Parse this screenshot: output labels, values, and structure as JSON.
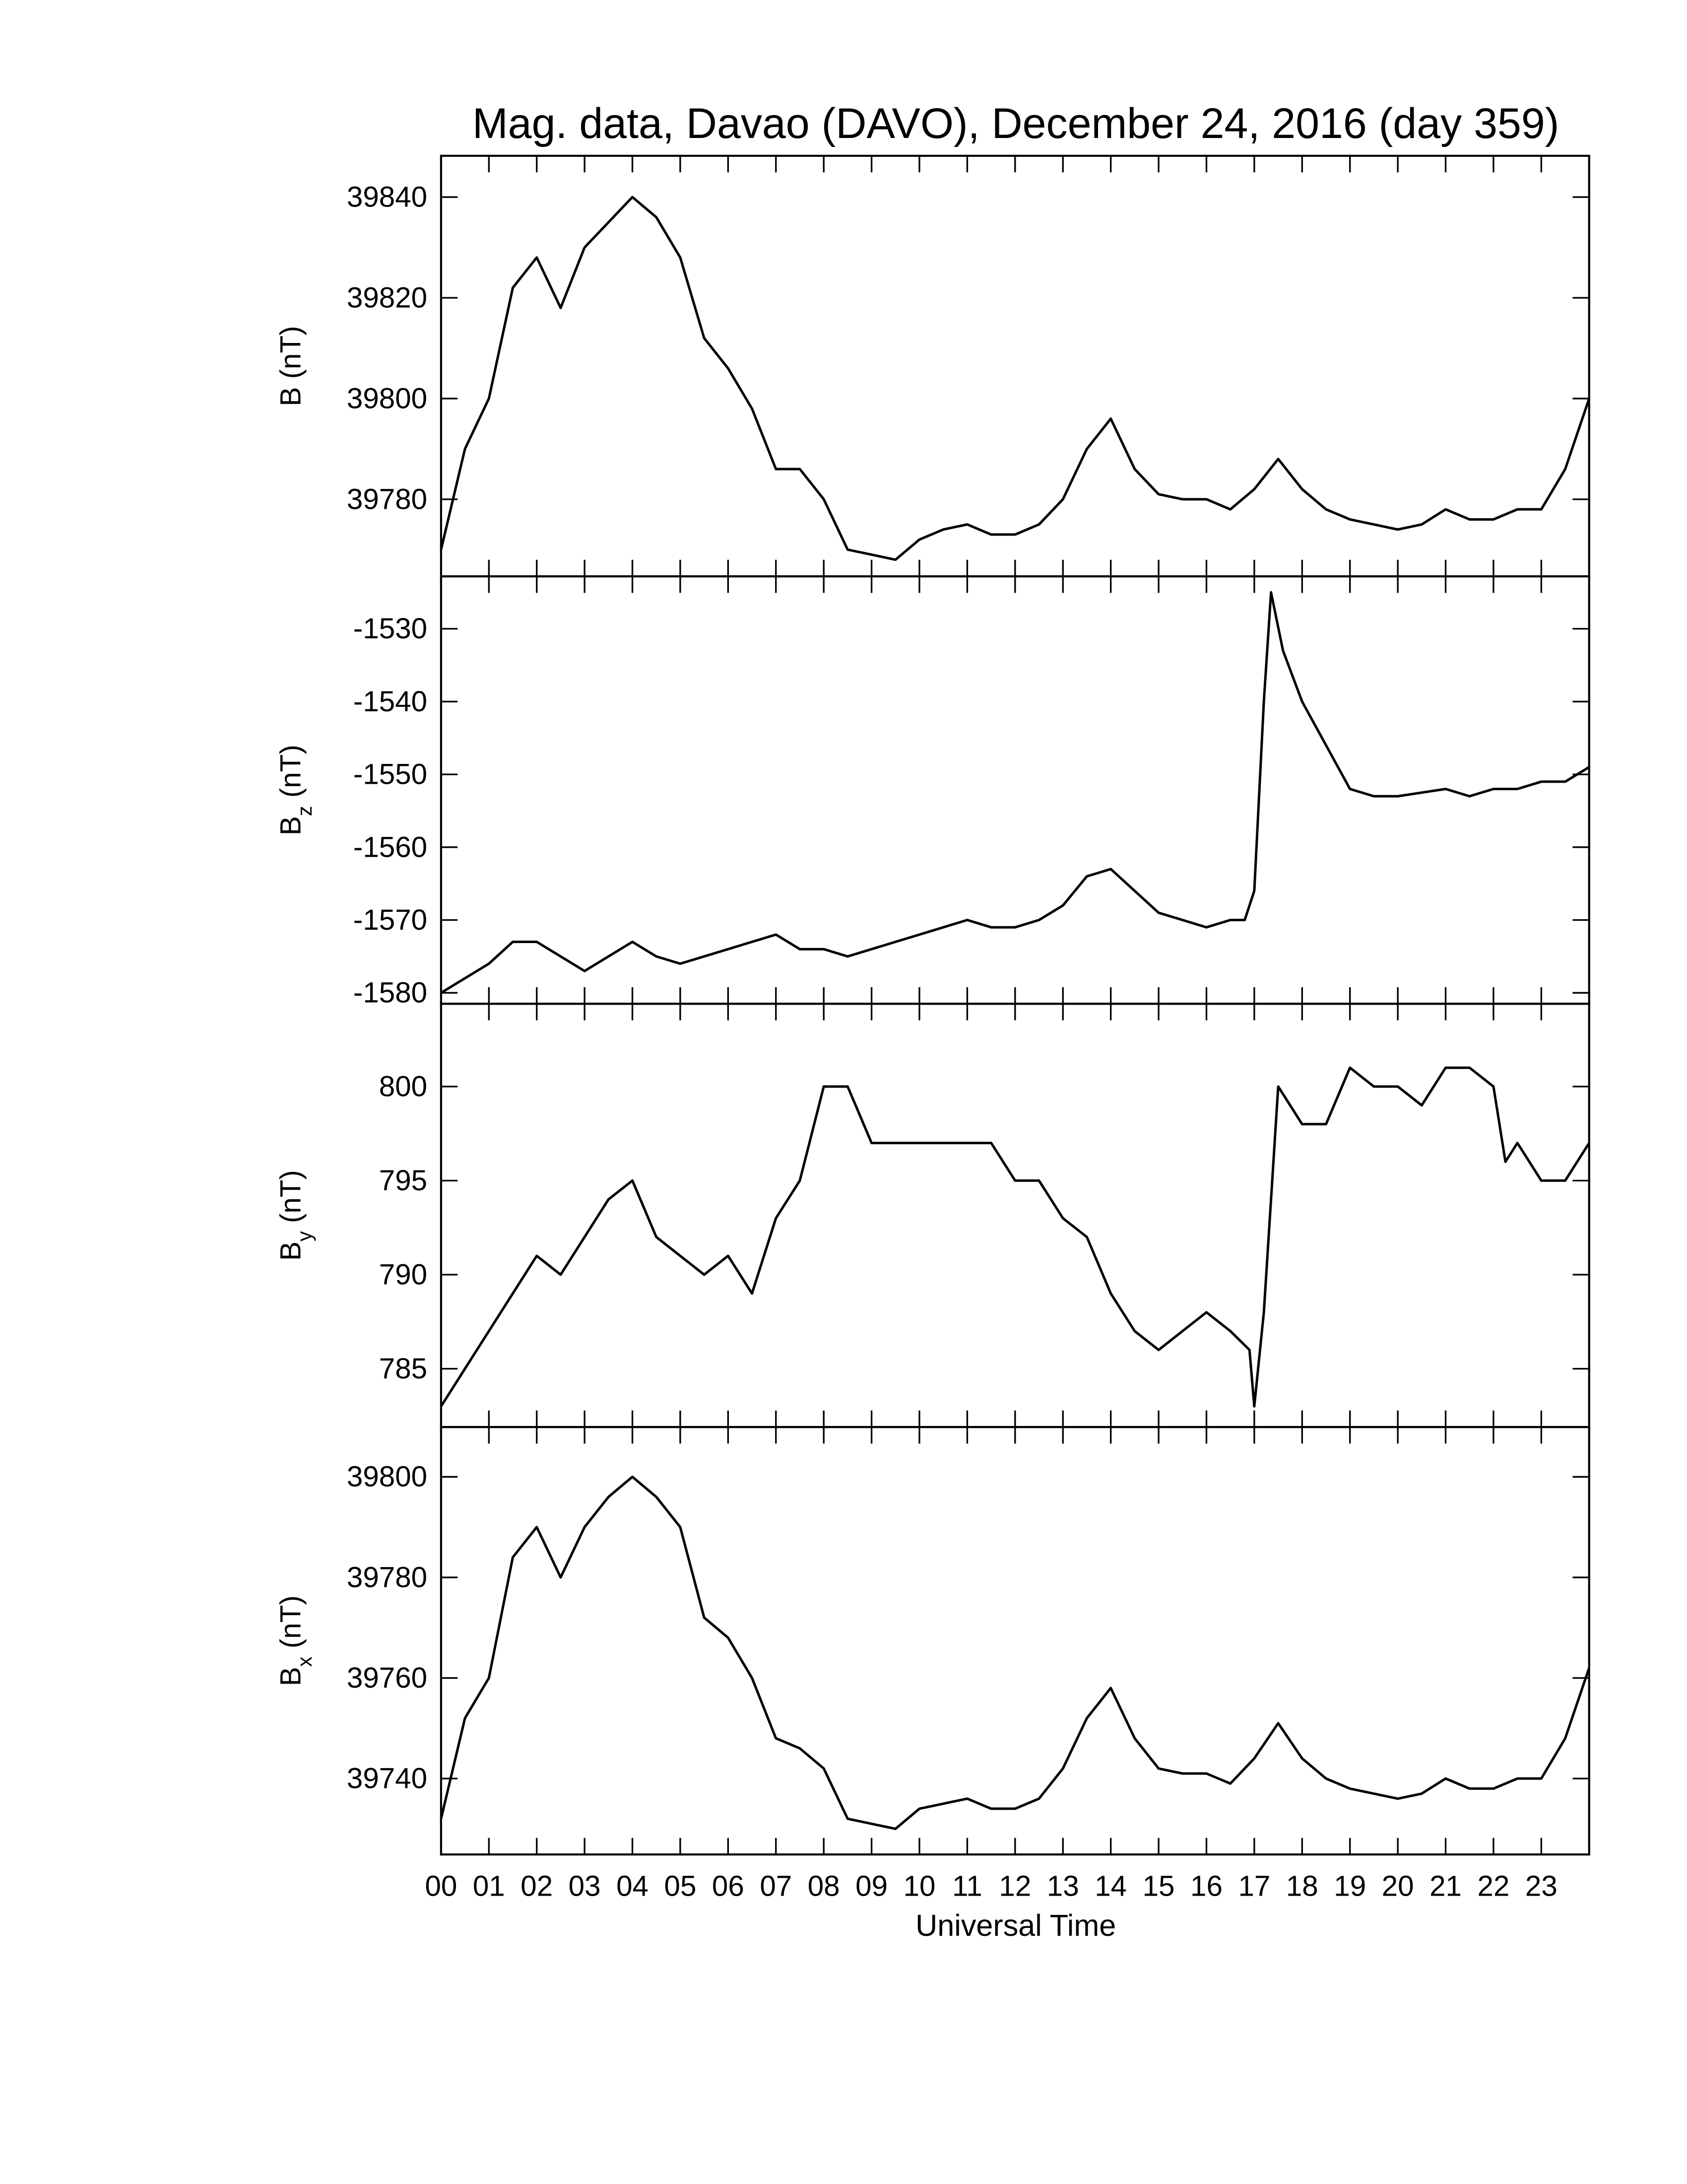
{
  "chart_data": [
    {
      "type": "line",
      "title": "Mag. data, Davao (DAVO), December 24, 2016 (day 359)",
      "ylabel": {
        "base": "B",
        "unit": "(nT)"
      },
      "color": "#000000",
      "xlim": [
        0,
        24
      ],
      "ylim": [
        39764.7,
        39848.2
      ],
      "yticks": [
        39780,
        39800,
        39820,
        39840
      ],
      "x": [
        0,
        0.5,
        1,
        1.5,
        2,
        2.5,
        3,
        3.5,
        4,
        4.5,
        5,
        5.5,
        6,
        6.5,
        7,
        7.5,
        8,
        8.5,
        9,
        9.5,
        10,
        10.5,
        11,
        11.5,
        12,
        12.5,
        13,
        13.5,
        14,
        14.5,
        15,
        15.5,
        16,
        16.5,
        17,
        17.5,
        18,
        18.5,
        19,
        19.5,
        20,
        20.5,
        21,
        21.5,
        22,
        22.5,
        23,
        23.5,
        24
      ],
      "values": [
        39770,
        39790,
        39800,
        39822,
        39828,
        39818,
        39830,
        39835,
        39840,
        39836,
        39828,
        39812,
        39806,
        39798,
        39786,
        39786,
        39780,
        39770,
        39769,
        39768,
        39772,
        39774,
        39775,
        39773,
        39773,
        39775,
        39780,
        39790,
        39796,
        39786,
        39781,
        39780,
        39780,
        39778,
        39782,
        39788,
        39782,
        39778,
        39776,
        39775,
        39774,
        39775,
        39778,
        39776,
        39776,
        39778,
        39778,
        39786,
        39800
      ]
    },
    {
      "type": "line",
      "ylabel": {
        "base": "B",
        "sub": "z",
        "unit": "(nT)"
      },
      "color": "#000000",
      "xlim": [
        0,
        24
      ],
      "ylim": [
        -1581.5,
        -1522.8
      ],
      "yticks": [
        -1580,
        -1570,
        -1560,
        -1550,
        -1540,
        -1530
      ],
      "x": [
        0,
        0.5,
        1,
        1.5,
        2,
        2.5,
        3,
        3.5,
        4,
        4.5,
        5,
        5.5,
        6,
        6.5,
        7,
        7.5,
        8,
        8.5,
        9,
        9.5,
        10,
        10.5,
        11,
        11.5,
        12,
        12.5,
        13,
        13.5,
        14,
        14.5,
        15,
        15.5,
        16,
        16.5,
        16.8,
        17,
        17.2,
        17.35,
        17.6,
        18,
        18.5,
        19,
        19.5,
        20,
        20.5,
        21,
        21.5,
        22,
        22.5,
        23,
        23.5,
        24
      ],
      "values": [
        -1580,
        -1578,
        -1576,
        -1573,
        -1573,
        -1575,
        -1577,
        -1575,
        -1573,
        -1575,
        -1576,
        -1575,
        -1574,
        -1573,
        -1572,
        -1574,
        -1574,
        -1575,
        -1574,
        -1573,
        -1572,
        -1571,
        -1570,
        -1571,
        -1571,
        -1570,
        -1568,
        -1564,
        -1563,
        -1566,
        -1569,
        -1570,
        -1571,
        -1570,
        -1570,
        -1566,
        -1540,
        -1525,
        -1533,
        -1540,
        -1546,
        -1552,
        -1553,
        -1553,
        -1552.5,
        -1552,
        -1553,
        -1552,
        -1552,
        -1551,
        -1551,
        -1549
      ]
    },
    {
      "type": "line",
      "ylabel": {
        "base": "B",
        "sub": "y",
        "unit": "(nT)"
      },
      "color": "#000000",
      "xlim": [
        0,
        24
      ],
      "ylim": [
        781.9,
        804.4
      ],
      "yticks": [
        785,
        790,
        795,
        800
      ],
      "x": [
        0,
        0.5,
        1,
        1.5,
        2,
        2.5,
        3,
        3.5,
        4,
        4.5,
        5,
        5.5,
        6,
        6.5,
        7,
        7.5,
        8,
        8.5,
        9,
        9.5,
        10,
        10.5,
        11,
        11.5,
        12,
        12.5,
        13,
        13.5,
        14,
        14.5,
        15,
        15.5,
        16,
        16.5,
        16.9,
        17,
        17.2,
        17.5,
        18,
        18.5,
        19,
        19.5,
        20,
        20.5,
        21,
        21.5,
        22,
        22.25,
        22.5,
        23,
        23.5,
        24
      ],
      "values": [
        783,
        785,
        787,
        789,
        791,
        790,
        792,
        794,
        795,
        792,
        791,
        790,
        791,
        789,
        793,
        795,
        800,
        800,
        797,
        797,
        797,
        797,
        797,
        797,
        795,
        795,
        793,
        792,
        789,
        787,
        786,
        787,
        788,
        787,
        786,
        783,
        788,
        800,
        798,
        798,
        801,
        800,
        800,
        799,
        801,
        801,
        800,
        796,
        797,
        795,
        795,
        797
      ]
    },
    {
      "type": "line",
      "ylabel": {
        "base": "B",
        "sub": "x",
        "unit": "(nT)"
      },
      "color": "#000000",
      "xlabel": "Universal Time",
      "xlim": [
        0,
        24
      ],
      "ylim": [
        39724.9,
        39809.9
      ],
      "yticks": [
        39740,
        39760,
        39780,
        39800
      ],
      "xticks": [
        {
          "value": 0,
          "label": "00"
        },
        {
          "value": 1,
          "label": "01"
        },
        {
          "value": 2,
          "label": "02"
        },
        {
          "value": 3,
          "label": "03"
        },
        {
          "value": 4,
          "label": "04"
        },
        {
          "value": 5,
          "label": "05"
        },
        {
          "value": 6,
          "label": "06"
        },
        {
          "value": 7,
          "label": "07"
        },
        {
          "value": 8,
          "label": "08"
        },
        {
          "value": 9,
          "label": "09"
        },
        {
          "value": 10,
          "label": "10"
        },
        {
          "value": 11,
          "label": "11"
        },
        {
          "value": 12,
          "label": "12"
        },
        {
          "value": 13,
          "label": "13"
        },
        {
          "value": 14,
          "label": "14"
        },
        {
          "value": 15,
          "label": "15"
        },
        {
          "value": 16,
          "label": "16"
        },
        {
          "value": 17,
          "label": "17"
        },
        {
          "value": 18,
          "label": "18"
        },
        {
          "value": 19,
          "label": "19"
        },
        {
          "value": 20,
          "label": "20"
        },
        {
          "value": 21,
          "label": "21"
        },
        {
          "value": 22,
          "label": "22"
        },
        {
          "value": 23,
          "label": "23"
        }
      ],
      "x": [
        0,
        0.5,
        1,
        1.5,
        2,
        2.5,
        3,
        3.5,
        4,
        4.5,
        5,
        5.5,
        6,
        6.5,
        7,
        7.5,
        8,
        8.5,
        9,
        9.5,
        10,
        10.5,
        11,
        11.5,
        12,
        12.5,
        13,
        13.5,
        14,
        14.5,
        15,
        15.5,
        16,
        16.5,
        17,
        17.5,
        18,
        18.5,
        19,
        19.5,
        20,
        20.5,
        21,
        21.5,
        22,
        22.5,
        23,
        23.5,
        24
      ],
      "values": [
        39732,
        39752,
        39760,
        39784,
        39790,
        39780,
        39790,
        39796,
        39800,
        39796,
        39790,
        39772,
        39768,
        39760,
        39748,
        39746,
        39742,
        39732,
        39731,
        39730,
        39734,
        39735,
        39736,
        39734,
        39734,
        39736,
        39742,
        39752,
        39758,
        39748,
        39742,
        39741,
        39741,
        39739,
        39744,
        39751,
        39744,
        39740,
        39738,
        39737,
        39736,
        39737,
        39740,
        39738,
        39738,
        39740,
        39740,
        39748,
        39762
      ]
    }
  ]
}
